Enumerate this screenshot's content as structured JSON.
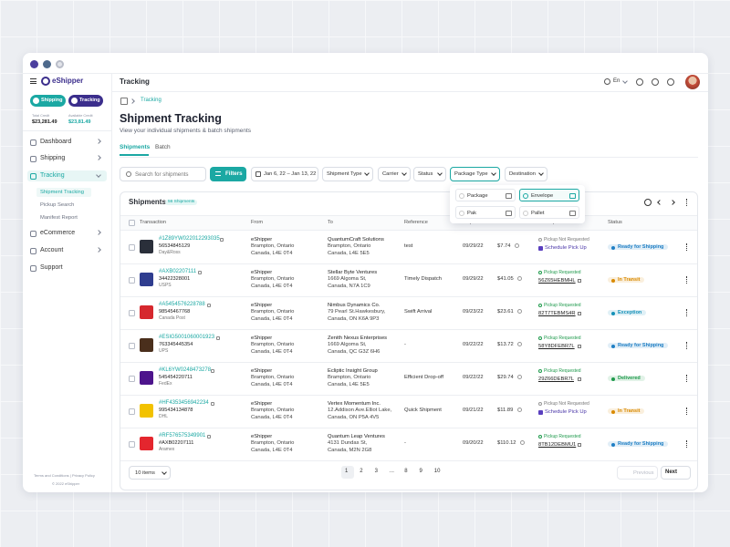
{
  "sidebar": {
    "brand": "eShipper",
    "modes": [
      "Shipping",
      "Tracking"
    ],
    "credit": [
      {
        "label": "Total Credit",
        "value": "$23,281.49"
      },
      {
        "label": "Available Credit",
        "value": "$23,81.49"
      }
    ],
    "nav": [
      {
        "label": "Dashboard"
      },
      {
        "label": "Shipping"
      },
      {
        "label": "Tracking",
        "children": [
          "Shipment Tracking",
          "Pickup Search",
          "Manifest Report"
        ]
      },
      {
        "label": "eCommerce"
      },
      {
        "label": "Account"
      },
      {
        "label": "Support"
      }
    ],
    "footer": {
      "links": "Terms and Conditions | Privacy Policy",
      "copyright": "© 2022 eShipper"
    }
  },
  "topbar": {
    "title": "Tracking",
    "language": "En"
  },
  "breadcrumb": "Tracking",
  "header": {
    "title": "Shipment Tracking",
    "subtitle": "View your individual shipments & batch shipments"
  },
  "tabs": [
    "Shipments",
    "Batch"
  ],
  "filters": {
    "search_placeholder": "Search for shipments",
    "button": "Filters",
    "date_range": "Jan 6, 22 – Jan 13, 22",
    "dropdowns": [
      "Shipment Type",
      "Carrier",
      "Status",
      "Package Type",
      "Destination"
    ]
  },
  "package_menu": [
    {
      "label": "Package",
      "checked": false
    },
    {
      "label": "Envelope",
      "checked": true
    },
    {
      "label": "Pak",
      "checked": false
    },
    {
      "label": "Pallet",
      "checked": false
    }
  ],
  "table": {
    "title": "Shipments",
    "count": "56 Shipments",
    "columns": [
      "Transaction",
      "From",
      "To",
      "Reference",
      "Ship Date",
      "Price",
      "Pick Up Status",
      "Status"
    ],
    "rows": [
      {
        "tracking": "#1Z89YW022012293035",
        "number": "56534845129",
        "carrier": "Day&Ross",
        "logo_color": "#2a2f3a",
        "from": [
          "eShipper",
          "Brampton, Ontario",
          "Canada, L4E 0T4"
        ],
        "to": [
          "QuantumCraft Solutions",
          "Brampton, Ontario",
          "Canada, L4E 5E5"
        ],
        "reference": "test",
        "ship_date": "09/29/22",
        "price": "$7.74",
        "pickup_status": "Pickup Not Requested",
        "pickup_action": "Schedule Pick Up",
        "status": "Ready for Shipping",
        "status_color": "#1f7fc4"
      },
      {
        "tracking": "#AXB02207111",
        "number": "34422328001",
        "carrier": "USPS",
        "logo_color": "#2f3d8f",
        "from": [
          "eShipper",
          "Brampton, Ontario",
          "Canada, L4E 0T4"
        ],
        "to": [
          "Stellar Byte Ventures",
          "1669 Algoma St,",
          "Canada, N7A 1C9"
        ],
        "reference": "Timely Dispatch",
        "ship_date": "09/29/22",
        "price": "$41.05",
        "pickup_status": "Pickup Requested",
        "pickup_code": "56Z65HEBMHL",
        "status": "In Transit",
        "status_color": "#d98a00"
      },
      {
        "tracking": "#A5454576228788",
        "number": "98545467768",
        "carrier": "Canada Post",
        "logo_color": "#d6282e",
        "from": [
          "eShipper",
          "Brampton, Ontario",
          "Canada, L4E 0T4"
        ],
        "to": [
          "Nimbus Dynamics Co.",
          "79 Pearl St.Hawkesbury,",
          "Canada, ON K6A 9P3"
        ],
        "reference": "Swift Arrival",
        "ship_date": "09/23/22",
        "price": "$23.61",
        "pickup_status": "Pickup Requested",
        "pickup_code": "82T7TEBMS4R",
        "status": "Exception",
        "status_color": "#1591b8"
      },
      {
        "tracking": "#ESIG5001060001923",
        "number": "763345445354",
        "carrier": "UPS",
        "logo_color": "#4a2f1c",
        "from": [
          "eShipper",
          "Brampton, Ontario",
          "Canada, L4E 0T4"
        ],
        "to": [
          "Zenith Nexus Enterprises",
          "1669 Algoma St,",
          "Canada, QC G3Z 6H6"
        ],
        "reference": "-",
        "ship_date": "09/22/22",
        "price": "$13.72",
        "pickup_status": "Pickup Requested",
        "pickup_code": "58Y8DFEBR7L",
        "status": "Ready for Shipping",
        "status_color": "#1f7fc4"
      },
      {
        "tracking": "#KL6YW0248473278",
        "number": "545454220711",
        "carrier": "FedEx",
        "logo_color": "#4d148c",
        "from": [
          "eShipper",
          "Brampton, Ontario",
          "Canada, L4E 0T4"
        ],
        "to": [
          "Ecliptic Insight Group",
          "Brampton, Ontario",
          "Canada, L4E 5E5"
        ],
        "reference": "Efficient Drop-off",
        "ship_date": "09/22/22",
        "price": "$29.74",
        "pickup_status": "Pickup Requested",
        "pickup_code": "29Z66DEBR7L",
        "status": "Delivered",
        "status_color": "#1f9a4c"
      },
      {
        "tracking": "#HF4353456942234",
        "number": "995434134878",
        "carrier": "DHL",
        "logo_color": "#f2c200",
        "from": [
          "eShipper",
          "Brampton, Ontario",
          "Canada, L4E 0T4"
        ],
        "to": [
          "Vertex Momentum Inc.",
          "12.Addison Ave.Elliot Lake,",
          "Canada, ON P5A 4V5"
        ],
        "reference": "Quick Shipment",
        "ship_date": "09/21/22",
        "price": "$11.89",
        "pickup_status": "Pickup Not Requested",
        "pickup_action": "Schedule Pick Up",
        "status": "In Transit",
        "status_color": "#d98a00"
      },
      {
        "tracking": "#RF576575349901",
        "number": "#AXB02207111",
        "carrier": "Aramex",
        "logo_color": "#e4262e",
        "from": [
          "eShipper",
          "Brampton, Ontario",
          "Canada, L4E 0T4"
        ],
        "to": [
          "Quantum Leap Ventures",
          "4131 Dundas St,",
          "Canada, M2N 2G8"
        ],
        "reference": "-",
        "ship_date": "09/20/22",
        "price": "$110.12",
        "pickup_status": "Pickup Requested",
        "pickup_code": "8TB12DEBMU1",
        "status": "Ready for Shipping",
        "status_color": "#1f7fc4"
      }
    ]
  },
  "pagination": {
    "page_size": "10 items",
    "pages": [
      "1",
      "2",
      "3",
      "...",
      "8",
      "9",
      "10"
    ],
    "previous": "Previous",
    "next": "Next"
  }
}
